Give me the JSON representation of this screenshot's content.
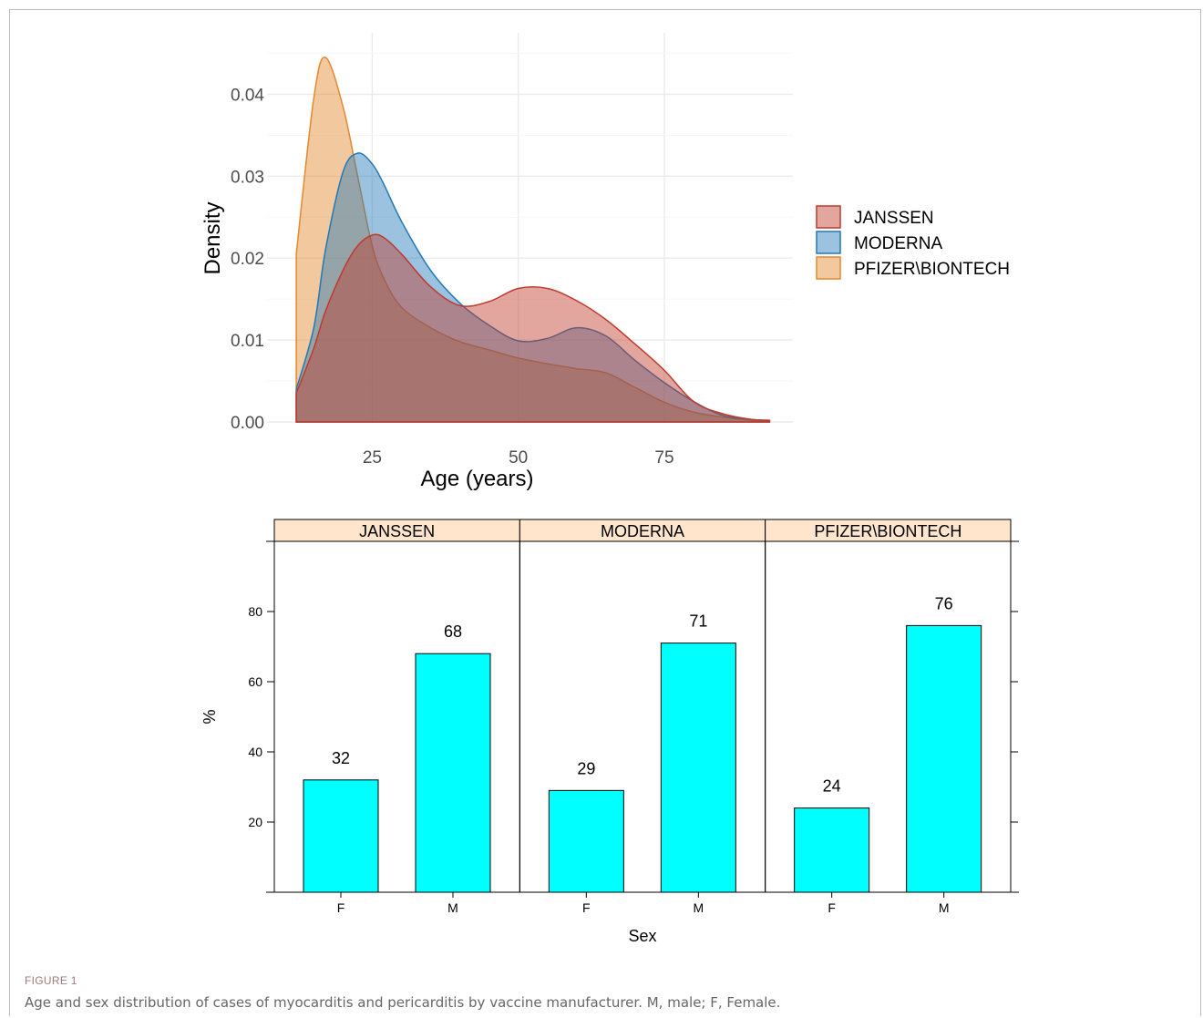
{
  "caption": {
    "label": "FIGURE 1",
    "text": "Age and sex distribution of cases of myocarditis and pericarditis by vaccine manufacturer. M, male; F, Female."
  },
  "chart_data": [
    {
      "type": "area",
      "title": "",
      "xlabel": "Age (years)",
      "ylabel": "Density",
      "xlim": [
        7,
        97
      ],
      "ylim": [
        0,
        0.0475
      ],
      "xticks": [
        25,
        50,
        75
      ],
      "yticks": [
        0.0,
        0.01,
        0.02,
        0.03,
        0.04
      ],
      "ytick_labels": [
        "0.00",
        "0.01",
        "0.02",
        "0.03",
        "0.04"
      ],
      "grid": true,
      "legend": "right",
      "x": [
        12,
        15,
        17,
        20,
        22.5,
        25,
        27,
        30,
        35,
        40,
        45,
        50,
        55,
        60,
        65,
        70,
        75,
        80,
        85,
        90,
        93
      ],
      "series": [
        {
          "name": "JANSSEN",
          "color": "#c0392b",
          "fill": "#d98a85",
          "values": [
            0.0035,
            0.009,
            0.0135,
            0.0185,
            0.0215,
            0.0228,
            0.0225,
            0.0205,
            0.0165,
            0.0142,
            0.0147,
            0.0163,
            0.0163,
            0.0148,
            0.0125,
            0.0095,
            0.0063,
            0.0025,
            0.001,
            0.0003,
            0.0002
          ]
        },
        {
          "name": "MODERNA",
          "color": "#2278b5",
          "fill": "#7db4da",
          "values": [
            0.004,
            0.0115,
            0.021,
            0.0305,
            0.0328,
            0.0315,
            0.029,
            0.0245,
            0.0185,
            0.0145,
            0.0118,
            0.0099,
            0.0102,
            0.0115,
            0.0105,
            0.0075,
            0.0048,
            0.0025,
            0.0008,
            0.0003,
            0.0002
          ]
        },
        {
          "name": "PFIZER\\BIONTECH",
          "color": "#e3882b",
          "fill": "#f0c08a",
          "values": [
            0.0205,
            0.0395,
            0.0445,
            0.0385,
            0.03,
            0.0215,
            0.0175,
            0.014,
            0.0115,
            0.0098,
            0.0088,
            0.0078,
            0.0071,
            0.0065,
            0.006,
            0.0042,
            0.0024,
            0.0012,
            0.0006,
            0.0002,
            0.0001
          ]
        }
      ]
    },
    {
      "type": "bar",
      "title": "",
      "xlabel": "Sex",
      "ylabel": "%",
      "ylim": [
        0,
        100
      ],
      "yticks": [
        20,
        40,
        60,
        80
      ],
      "categories": [
        "F",
        "M"
      ],
      "bar_color": "#00ffff",
      "strip_color": "#ffe5cc",
      "panels": [
        {
          "name": "JANSSEN",
          "values": [
            32,
            68
          ],
          "labels": [
            "32",
            "68"
          ]
        },
        {
          "name": "MODERNA",
          "values": [
            29,
            71
          ],
          "labels": [
            "29",
            "71"
          ]
        },
        {
          "name": "PFIZER\\BIONTECH",
          "values": [
            24,
            76
          ],
          "labels": [
            "24",
            "76"
          ]
        }
      ]
    }
  ]
}
